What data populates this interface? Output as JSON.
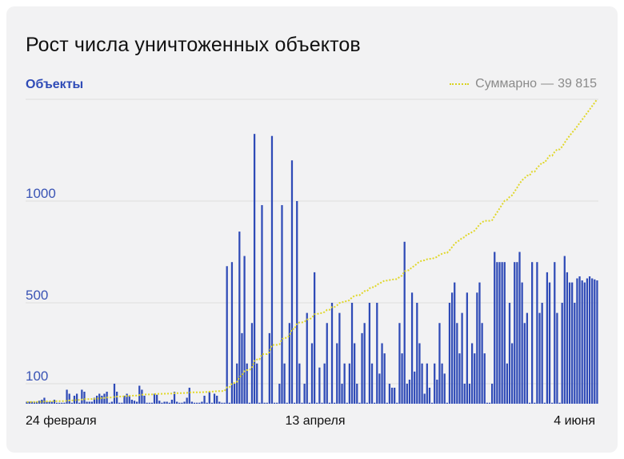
{
  "title": "Рост числа уничтоженных объектов",
  "colors": {
    "bar": "#2f4bb7",
    "line": "#e0d72a",
    "grid": "#dedede",
    "ytick": "#3a54b5",
    "card": "#f2f2f3"
  },
  "chart_data": {
    "type": "bar",
    "title": "Рост числа уничтоженных объектов",
    "series_label": "Объекты",
    "legend": {
      "label": "Суммарно",
      "sep": "—",
      "value": "39 815",
      "position": "top-right"
    },
    "x_ticks": [
      "24 февраля",
      "13 апреля",
      "4 июня"
    ],
    "y_ticks": [
      100,
      500,
      1000
    ],
    "ylim": [
      0,
      1350
    ],
    "grid": true,
    "series": [
      {
        "name": "Объекты",
        "type": "bar",
        "values": [
          10,
          10,
          10,
          10,
          10,
          15,
          20,
          30,
          10,
          10,
          10,
          20,
          5,
          5,
          5,
          5,
          70,
          50,
          5,
          40,
          50,
          5,
          70,
          60,
          10,
          10,
          10,
          30,
          40,
          50,
          40,
          50,
          60,
          5,
          10,
          100,
          60,
          5,
          5,
          40,
          50,
          40,
          20,
          15,
          10,
          90,
          70,
          40,
          5,
          5,
          5,
          50,
          45,
          15,
          5,
          10,
          10,
          5,
          20,
          60,
          10,
          5,
          5,
          10,
          30,
          80,
          10,
          5,
          5,
          5,
          10,
          40,
          5,
          60,
          5,
          50,
          40,
          10,
          5,
          5,
          680,
          5,
          700,
          100,
          200,
          850,
          350,
          730,
          200,
          5,
          400,
          1330,
          200,
          5,
          980,
          5,
          5,
          350,
          1320,
          5,
          5,
          100,
          980,
          200,
          5,
          400,
          1200,
          5,
          1000,
          200,
          5,
          100,
          450,
          5,
          300,
          650,
          5,
          180,
          5,
          200,
          400,
          5,
          500,
          5,
          300,
          450,
          100,
          200,
          5,
          200,
          500,
          300,
          100,
          5,
          350,
          400,
          5,
          500,
          200,
          5,
          500,
          150,
          300,
          250,
          5,
          100,
          80,
          80,
          5,
          400,
          250,
          800,
          100,
          120,
          550,
          160,
          500,
          300,
          200,
          50,
          200,
          80,
          5,
          200,
          120,
          400,
          200,
          150,
          5,
          500,
          550,
          600,
          400,
          250,
          450,
          100,
          550,
          100,
          300,
          250,
          550,
          600,
          400,
          250,
          5,
          5,
          100,
          750,
          700,
          700,
          700,
          700,
          200,
          500,
          300,
          700,
          700,
          750,
          600,
          400,
          450,
          5,
          700,
          5,
          700,
          450,
          500,
          5,
          650,
          600,
          5,
          700,
          450,
          5,
          500,
          730,
          650,
          600,
          600,
          500,
          620,
          630,
          610,
          600,
          620,
          630,
          620,
          615,
          610
        ],
        "note_skip": true
      }
    ]
  }
}
